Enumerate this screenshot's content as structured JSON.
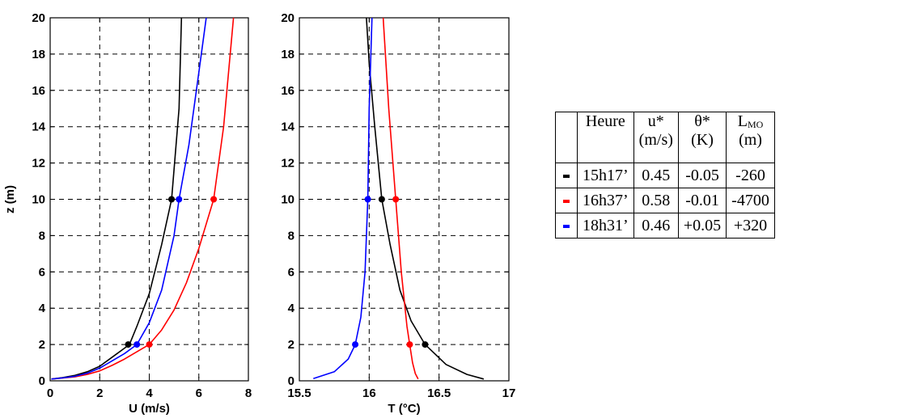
{
  "chart_data": [
    {
      "type": "line",
      "xlabel": "U (m/s)",
      "ylabel": "z (m)",
      "xlim": [
        0,
        8
      ],
      "ylim": [
        0,
        20
      ],
      "xticks": [
        "0",
        "2",
        "4",
        "6",
        "8"
      ],
      "yticks": [
        "0",
        "2",
        "4",
        "6",
        "8",
        "10",
        "12",
        "14",
        "16",
        "18",
        "20"
      ],
      "grid": true,
      "series": [
        {
          "color": "#000000",
          "x": [
            0.05,
            0.5,
            1.0,
            1.5,
            2.0,
            2.5,
            3.0,
            3.2,
            3.5,
            4.0,
            4.5,
            4.9,
            5.2,
            5.3
          ],
          "y": [
            0.1,
            0.18,
            0.3,
            0.5,
            0.8,
            1.3,
            1.8,
            2.0,
            3.0,
            4.8,
            7.5,
            10.0,
            15.0,
            20.0
          ],
          "markers": [
            {
              "x": 3.15,
              "y": 2
            },
            {
              "x": 4.9,
              "y": 10
            }
          ]
        },
        {
          "color": "#ff0000",
          "x": [
            0.05,
            0.5,
            1.0,
            1.5,
            2.0,
            2.5,
            3.0,
            3.5,
            4.0,
            4.5,
            5.0,
            5.5,
            6.0,
            6.6,
            7.0,
            7.4
          ],
          "y": [
            0.1,
            0.15,
            0.22,
            0.35,
            0.55,
            0.85,
            1.2,
            1.6,
            2.0,
            2.8,
            3.9,
            5.4,
            7.3,
            10.0,
            14.0,
            20.0
          ],
          "markers": [
            {
              "x": 4.0,
              "y": 2
            },
            {
              "x": 6.6,
              "y": 10
            }
          ]
        },
        {
          "color": "#0000ff",
          "x": [
            0.05,
            0.5,
            1.0,
            1.5,
            2.0,
            2.5,
            3.0,
            3.5,
            4.0,
            4.5,
            5.0,
            5.2,
            5.6,
            6.0,
            6.3
          ],
          "y": [
            0.1,
            0.16,
            0.25,
            0.42,
            0.7,
            1.1,
            1.5,
            2.0,
            3.2,
            5.0,
            8.0,
            10.0,
            13.0,
            17.0,
            20.0
          ],
          "markers": [
            {
              "x": 3.5,
              "y": 2
            },
            {
              "x": 5.2,
              "y": 10
            }
          ]
        }
      ]
    },
    {
      "type": "line",
      "xlabel": "T (°C)",
      "ylabel": "",
      "xlim": [
        15.5,
        17
      ],
      "ylim": [
        0,
        20
      ],
      "xticks": [
        "15.5",
        "16",
        "16.5",
        "17"
      ],
      "yticks": [
        "0",
        "2",
        "4",
        "6",
        "8",
        "10",
        "12",
        "14",
        "16",
        "18",
        "20"
      ],
      "grid": true,
      "series": [
        {
          "color": "#000000",
          "x": [
            15.98,
            16.0,
            16.04,
            16.09,
            16.15,
            16.22,
            16.3,
            16.4,
            16.55,
            16.7,
            16.82
          ],
          "y": [
            20.0,
            17.5,
            14.0,
            10.0,
            7.5,
            5.0,
            3.3,
            2.0,
            0.9,
            0.35,
            0.1
          ],
          "markers": [
            {
              "x": 16.09,
              "y": 10
            },
            {
              "x": 16.4,
              "y": 2
            }
          ]
        },
        {
          "color": "#ff0000",
          "x": [
            16.1,
            16.14,
            16.19,
            16.23,
            16.27,
            16.29,
            16.31,
            16.33,
            16.35
          ],
          "y": [
            20.0,
            15.0,
            10.0,
            6.0,
            3.0,
            2.0,
            1.0,
            0.4,
            0.1
          ],
          "markers": [
            {
              "x": 16.19,
              "y": 10
            },
            {
              "x": 16.29,
              "y": 2
            }
          ]
        },
        {
          "color": "#0000ff",
          "x": [
            16.02,
            16.0,
            15.99,
            15.97,
            15.94,
            15.9,
            15.85,
            15.75,
            15.6
          ],
          "y": [
            20.0,
            15.0,
            10.0,
            6.0,
            3.5,
            2.0,
            1.2,
            0.5,
            0.12
          ],
          "markers": [
            {
              "x": 15.99,
              "y": 10
            },
            {
              "x": 15.9,
              "y": 2
            }
          ]
        }
      ]
    }
  ],
  "table": {
    "headers": [
      {
        "main": "Heure",
        "unit": ""
      },
      {
        "main": "u*",
        "unit": "(m/s)"
      },
      {
        "main": "θ*",
        "unit": "(K)"
      },
      {
        "main": "L",
        "sub": "MO",
        "unit": "(m)"
      }
    ],
    "rows": [
      {
        "marker_color": "#000000",
        "heure": "15h17’",
        "u": "0.45",
        "theta": "-0.05",
        "lmo": "-260"
      },
      {
        "marker_color": "#ff0000",
        "heure": "16h37’",
        "u": "0.58",
        "theta": "-0.01",
        "lmo": "-4700"
      },
      {
        "marker_color": "#0000ff",
        "heure": "18h31’",
        "u": "0.46",
        "theta": "+0.05",
        "lmo": "+320"
      }
    ]
  }
}
